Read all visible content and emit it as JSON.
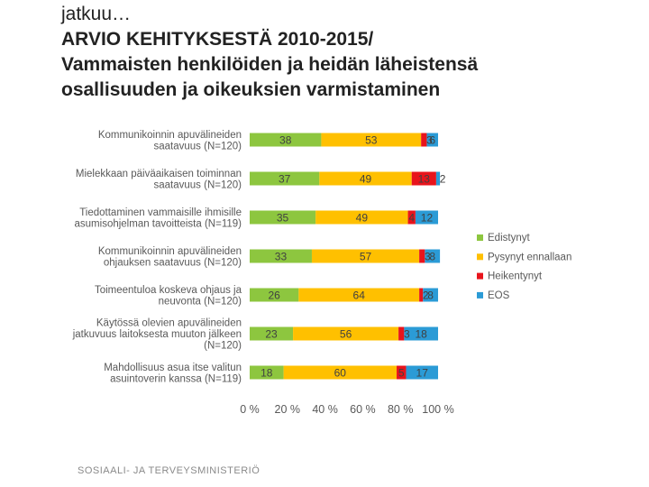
{
  "slide": {
    "title_line1": "jatkuu…",
    "title_line2": "ARVIO KEHITYKSESTÄ 2010-2015/",
    "title_line3": "Vammaisten henkilöiden ja heidän läheistensä",
    "title_line4": "osallisuuden ja oikeuksien varmistaminen",
    "footer": "SOSIAALI- JA TERVEYSMINISTERIÖ"
  },
  "chart_data": {
    "type": "bar",
    "orientation": "horizontal",
    "stacked": "percent",
    "categories": [
      [
        "Kommunikoinnin apuvälineiden",
        "saatavuus (N=120)"
      ],
      [
        "Mielekkaan päiväaikaisen toiminnan",
        "saatavuus (N=120)"
      ],
      [
        "Tiedottaminen vammaisille ihmisille",
        "asumisohjelman tavoitteista (N=119)"
      ],
      [
        "Kommunikoinnin apuvälineiden",
        "ohjauksen saatavuus (N=120)"
      ],
      [
        "Toimeentuloa koskeva ohjaus ja",
        "neuvonta (N=120)"
      ],
      [
        "Käytössä olevien apuvälineiden",
        "jatkuvuus laitoksesta muuton jälkeen",
        "(N=120)"
      ],
      [
        "Mahdollisuus asua itse valitun",
        "asuintoverin kanssa (N=119)"
      ]
    ],
    "series": [
      {
        "name": "Edistynyt",
        "color": "#8dc63f",
        "values": [
          38,
          37,
          35,
          33,
          26,
          23,
          18
        ],
        "labels": [
          "38",
          "37",
          "35",
          "33",
          "26",
          "23",
          "18"
        ]
      },
      {
        "name": "Pysynyt ennallaan",
        "color": "#ffc000",
        "values": [
          53,
          49,
          49,
          57,
          64,
          56,
          60
        ],
        "labels": [
          "53",
          "49",
          "49",
          "57",
          "64",
          "56",
          "60"
        ]
      },
      {
        "name": "Heikentynyt",
        "color": "#e8141c",
        "values": [
          3,
          13,
          4,
          3,
          2,
          3,
          5
        ],
        "labels": [
          "3",
          "13",
          "4",
          "3",
          "2",
          "3",
          "5"
        ]
      },
      {
        "name": "EOS",
        "color": "#2b9bd6",
        "values": [
          6,
          2,
          12,
          8,
          8,
          18,
          17
        ],
        "labels": [
          "6",
          "2",
          "12",
          "8",
          "8",
          "18",
          "17"
        ]
      }
    ],
    "xticks": [
      "0 %",
      "20 %",
      "40 %",
      "60 %",
      "80 %",
      "100 %"
    ],
    "xlim": [
      0,
      100
    ],
    "title": "",
    "xlabel": "",
    "ylabel": "",
    "legend_position": "right",
    "grid": false
  }
}
